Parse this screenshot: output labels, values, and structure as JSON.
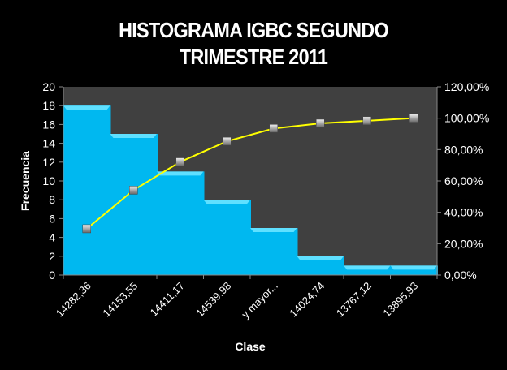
{
  "chart_data": {
    "type": "bar",
    "title": "HISTOGRAMA IGBC SEGUNDO TRIMESTRE 2011",
    "title_lines": [
      "HISTOGRAMA IGBC SEGUNDO",
      "TRIMESTRE 2011"
    ],
    "xlabel": "Clase",
    "ylabel": "Frecuencia",
    "categories": [
      "14282,36",
      "14153,55",
      "14411,17",
      "14539,98",
      "y mayor...",
      "14024,74",
      "13767,12",
      "13895,93"
    ],
    "series": [
      {
        "type": "bar",
        "axis": "left",
        "color": "#00B8F0",
        "values": [
          18,
          15,
          11,
          8,
          5,
          2,
          1,
          1
        ]
      },
      {
        "type": "line",
        "axis": "right",
        "color": "#FFFF00",
        "marker": "gray-square",
        "values": [
          29.51,
          54.1,
          72.13,
          85.25,
          93.44,
          96.72,
          98.36,
          100.0
        ]
      }
    ],
    "ylim": [
      0,
      20
    ],
    "yticks": [
      "0",
      "2",
      "4",
      "6",
      "8",
      "10",
      "12",
      "14",
      "16",
      "18",
      "20"
    ],
    "y2lim": [
      0,
      120
    ],
    "y2ticks": [
      "0,00%",
      "20,00%",
      "40,00%",
      "60,00%",
      "80,00%",
      "100,00%",
      "120,00%"
    ],
    "grid": false,
    "legend": "none",
    "plot_background": "#404040",
    "background": "#000000"
  }
}
